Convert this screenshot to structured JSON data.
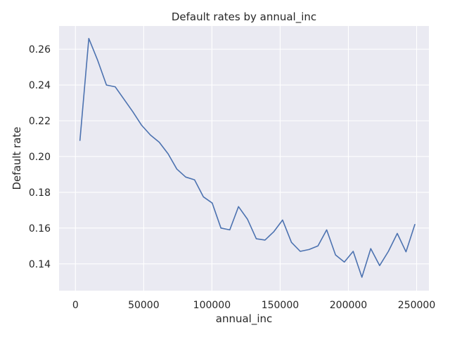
{
  "chart_data": {
    "type": "line",
    "title": "Default rates by annual_inc",
    "xlabel": "annual_inc",
    "ylabel": "Default rate",
    "xlim": [
      -12000,
      259000
    ],
    "ylim": [
      0.125,
      0.273
    ],
    "xticks": [
      0,
      50000,
      100000,
      150000,
      200000,
      250000
    ],
    "xtick_labels": [
      "0",
      "50000",
      "100000",
      "150000",
      "200000",
      "250000"
    ],
    "yticks": [
      0.14,
      0.16,
      0.18,
      0.2,
      0.22,
      0.24,
      0.26
    ],
    "ytick_labels": [
      "0.14",
      "0.16",
      "0.18",
      "0.20",
      "0.22",
      "0.24",
      "0.26"
    ],
    "grid": true,
    "background": "#eaeaf2",
    "series": [
      {
        "color": "#4c72b0",
        "x": [
          3300,
          9800,
          16200,
          22700,
          29100,
          35600,
          42100,
          48500,
          55000,
          61400,
          67900,
          74300,
          80800,
          87300,
          93700,
          100200,
          106600,
          113100,
          119500,
          126000,
          132500,
          138900,
          145400,
          151800,
          158300,
          164700,
          171200,
          177700,
          184100,
          190600,
          197000,
          203500,
          209900,
          216400,
          222900,
          229300,
          235800,
          242200,
          248700
        ],
        "y": [
          0.209,
          0.266,
          0.254,
          0.24,
          0.239,
          0.232,
          0.225,
          0.2175,
          0.212,
          0.208,
          0.2015,
          0.193,
          0.1885,
          0.187,
          0.1775,
          0.174,
          0.16,
          0.159,
          0.172,
          0.165,
          0.154,
          0.1533,
          0.158,
          0.1645,
          0.152,
          0.147,
          0.148,
          0.15,
          0.159,
          0.145,
          0.141,
          0.147,
          0.1325,
          0.1485,
          0.139,
          0.147,
          0.157,
          0.1467,
          0.162
        ]
      }
    ]
  }
}
